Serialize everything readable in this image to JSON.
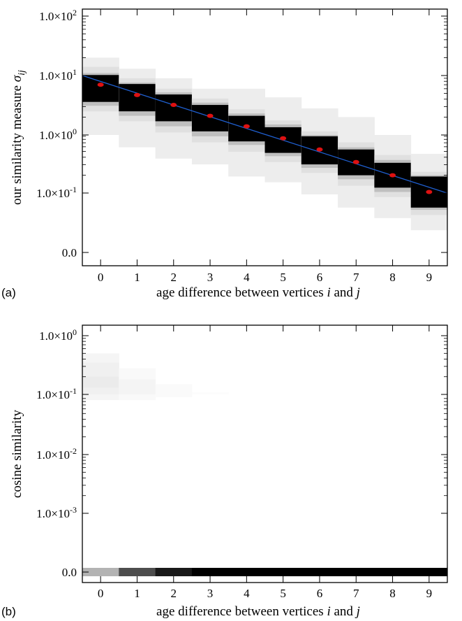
{
  "chart_data": [
    {
      "type": "heatmap",
      "panel_label": "(a)",
      "xlabel": "age difference between vertices i and j",
      "ylabel": "our similarity measure σij",
      "x_ticks": [
        "0",
        "1",
        "2",
        "3",
        "4",
        "5",
        "6",
        "7",
        "8",
        "9"
      ],
      "y_tick_labels": [
        {
          "base": "1.0×10",
          "exp": "2"
        },
        {
          "base": "1.0×10",
          "exp": "1"
        },
        {
          "base": "1.0×10",
          "exp": "0"
        },
        {
          "base": "1.0×10",
          "exp": "-1"
        },
        {
          "base": "0.0",
          "exp": ""
        }
      ],
      "y_scale": "log (with 0.0 baseline)",
      "columns": [
        {
          "x": 0,
          "bands": [
            [
              1.0,
              20.0,
              0.07
            ],
            [
              2.5,
              14.0,
              0.12
            ],
            [
              3.1,
              11.0,
              0.25
            ],
            [
              3.6,
              10.2,
              1.0
            ]
          ],
          "mean": 7.0
        },
        {
          "x": 1,
          "bands": [
            [
              0.62,
              13.0,
              0.07
            ],
            [
              1.7,
              9.0,
              0.12
            ],
            [
              2.1,
              7.6,
              0.25
            ],
            [
              2.5,
              7.2,
              1.0
            ]
          ],
          "mean": 4.7
        },
        {
          "x": 2,
          "bands": [
            [
              0.4,
              9.0,
              0.07
            ],
            [
              1.1,
              6.0,
              0.12
            ],
            [
              1.4,
              5.2,
              0.25
            ],
            [
              1.7,
              4.8,
              1.0
            ]
          ],
          "mean": 3.2
        },
        {
          "x": 3,
          "bands": [
            [
              0.32,
              6.0,
              0.07
            ],
            [
              0.75,
              4.1,
              0.12
            ],
            [
              0.95,
              3.5,
              0.25
            ],
            [
              1.15,
              3.2,
              1.0
            ]
          ],
          "mean": 2.1
        },
        {
          "x": 4,
          "bands": [
            [
              0.2,
              6.0,
              0.07
            ],
            [
              0.52,
              2.7,
              0.12
            ],
            [
              0.68,
              2.3,
              0.25
            ],
            [
              0.78,
              2.1,
              1.0
            ]
          ],
          "mean": 1.4
        },
        {
          "x": 5,
          "bands": [
            [
              0.16,
              4.3,
              0.07
            ],
            [
              0.35,
              1.75,
              0.12
            ],
            [
              0.44,
              1.5,
              0.25
            ],
            [
              0.5,
              1.35,
              1.0
            ]
          ],
          "mean": 0.88
        },
        {
          "x": 6,
          "bands": [
            [
              0.1,
              2.8,
              0.07
            ],
            [
              0.23,
              1.15,
              0.12
            ],
            [
              0.28,
              1.0,
              0.25
            ],
            [
              0.32,
              0.95,
              1.0
            ]
          ],
          "mean": 0.57
        },
        {
          "x": 7,
          "bands": [
            [
              0.06,
              2.0,
              0.07
            ],
            [
              0.14,
              0.75,
              0.12
            ],
            [
              0.18,
              0.62,
              0.25
            ],
            [
              0.21,
              0.57,
              1.0
            ]
          ],
          "mean": 0.35
        },
        {
          "x": 8,
          "bands": [
            [
              0.04,
              1.0,
              0.07
            ],
            [
              0.09,
              0.46,
              0.12
            ],
            [
              0.11,
              0.38,
              0.25
            ],
            [
              0.13,
              0.34,
              1.0
            ]
          ],
          "mean": 0.21
        },
        {
          "x": 9,
          "bands": [
            [
              0.025,
              0.48,
              0.07
            ],
            [
              0.045,
              0.24,
              0.12
            ],
            [
              0.055,
              0.21,
              0.25
            ],
            [
              0.06,
              0.2,
              1.0
            ]
          ],
          "mean": 0.11
        }
      ],
      "fit_line": {
        "x": [
          -0.5,
          9.5
        ],
        "y": [
          10.0,
          0.105
        ],
        "color": "#1f5fd0"
      },
      "mean_marker_color": "#dd1111"
    },
    {
      "type": "heatmap",
      "panel_label": "(b)",
      "xlabel": "age difference between vertices i and j",
      "ylabel": "cosine similarity",
      "x_ticks": [
        "0",
        "1",
        "2",
        "3",
        "4",
        "5",
        "6",
        "7",
        "8",
        "9"
      ],
      "y_tick_labels": [
        {
          "base": "1.0×10",
          "exp": "0"
        },
        {
          "base": "1.0×10",
          "exp": "-1"
        },
        {
          "base": "1.0×10",
          "exp": "-2"
        },
        {
          "base": "1.0×10",
          "exp": "-3"
        },
        {
          "base": "0.0",
          "exp": ""
        }
      ],
      "y_scale": "log (with 0.0 baseline)",
      "columns": [
        {
          "x": 0,
          "bands": [
            [
              0.08,
              0.5,
              0.04
            ],
            [
              0.1,
              0.35,
              0.06
            ],
            [
              0.13,
              0.2,
              0.08
            ]
          ],
          "zero_intensity": 0.3
        },
        {
          "x": 1,
          "bands": [
            [
              0.08,
              0.28,
              0.025
            ],
            [
              0.1,
              0.18,
              0.045
            ]
          ],
          "zero_intensity": 0.7
        },
        {
          "x": 2,
          "bands": [
            [
              0.09,
              0.15,
              0.02
            ]
          ],
          "zero_intensity": 0.9
        },
        {
          "x": 3,
          "bands": [
            [
              0.1,
              0.11,
              0.01
            ]
          ],
          "zero_intensity": 1.0
        },
        {
          "x": 4,
          "bands": [],
          "zero_intensity": 1.0
        },
        {
          "x": 5,
          "bands": [],
          "zero_intensity": 1.0
        },
        {
          "x": 6,
          "bands": [],
          "zero_intensity": 1.0
        },
        {
          "x": 7,
          "bands": [],
          "zero_intensity": 1.0
        },
        {
          "x": 8,
          "bands": [],
          "zero_intensity": 1.0
        },
        {
          "x": 9,
          "bands": [],
          "zero_intensity": 1.0
        }
      ]
    }
  ]
}
